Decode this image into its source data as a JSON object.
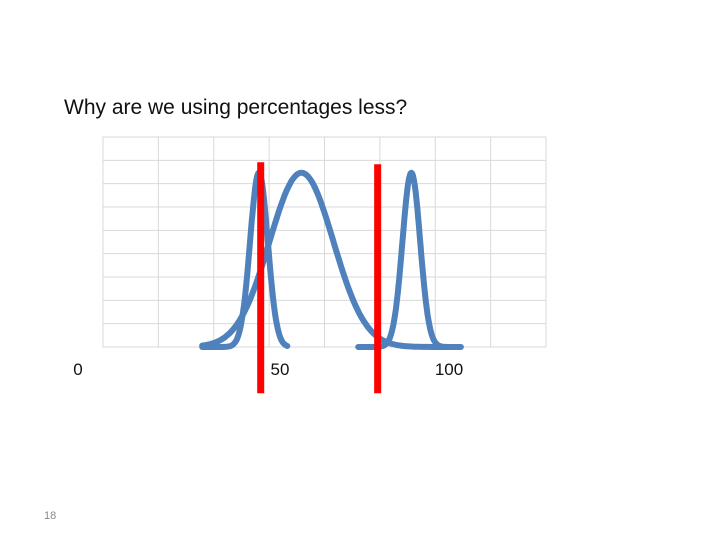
{
  "slide": {
    "title": "Why are we using percentages less?",
    "page_number": "18"
  },
  "colors": {
    "curve": "#4f81bd",
    "marker": "#ff0000",
    "grid": "#d9d9d9"
  },
  "chart_data": {
    "type": "line",
    "title": "Why are we using percentages less?",
    "xlabel": "",
    "ylabel": "",
    "xlim": [
      0,
      125
    ],
    "ylim": [
      0,
      1
    ],
    "x_tick_labels": [
      {
        "value": 0,
        "label": "0"
      },
      {
        "value": 50,
        "label": "50"
      },
      {
        "value": 100,
        "label": "100"
      }
    ],
    "grid": true,
    "legend": "none",
    "series": [
      {
        "mean": 44,
        "sd": 2.5,
        "peak": 0.83,
        "x_start": 28,
        "x_end": 52
      },
      {
        "mean": 56,
        "sd": 9,
        "peak": 0.83,
        "x_start": 28,
        "x_end": 98
      },
      {
        "mean": 87,
        "sd": 2.5,
        "peak": 0.83,
        "x_start": 72,
        "x_end": 101
      }
    ],
    "vertical_markers": [
      {
        "x": 44.5,
        "y_top": 0.88,
        "y_bottom": -0.22
      },
      {
        "x": 77.5,
        "y_top": 0.87,
        "y_bottom": -0.22
      }
    ]
  }
}
